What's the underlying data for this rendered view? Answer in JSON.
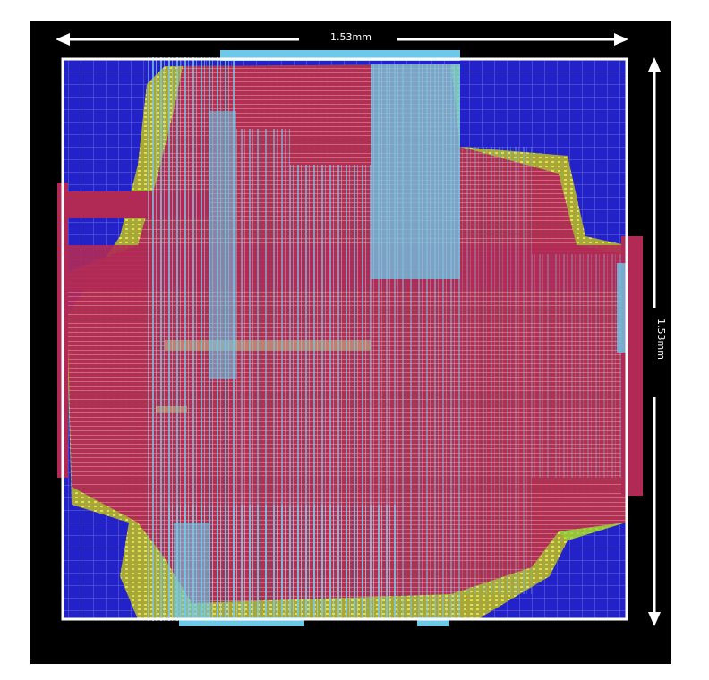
{
  "dimensions": {
    "width_label": "1.53mm",
    "height_label": "1.53mm"
  },
  "colors": {
    "background": "#000000",
    "die_fill": "#2222c8",
    "grid": "#6a6ad8",
    "metal_red": "#b02a55",
    "metal_yellow": "#c8c83c",
    "metal_green": "#8fd23c",
    "metal_cyan": "#6ec8e8",
    "outline": "#ffffff"
  }
}
